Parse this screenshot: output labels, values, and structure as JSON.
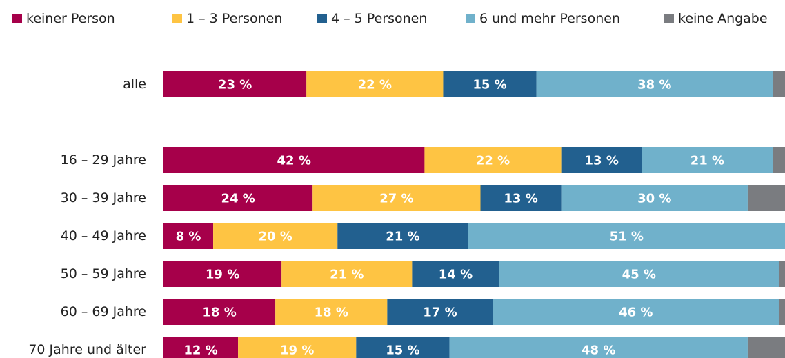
{
  "chart_data": {
    "type": "stacked-bar-horizontal",
    "categories": [
      "alle",
      "16 – 29 Jahre",
      "30 – 39 Jahre",
      "40 – 49 Jahre",
      "50 – 59 Jahre",
      "60 – 69 Jahre",
      "70 Jahre und älter"
    ],
    "xlim": [
      0,
      100
    ],
    "legend": "top",
    "series": [
      {
        "name": "keiner Person",
        "color": "#a6004a",
        "values": [
          23,
          42,
          24,
          8,
          19,
          18,
          12
        ],
        "value_labels": [
          "23 %",
          "42 %",
          "24 %",
          "8 %",
          "19 %",
          "18 %",
          "12 %"
        ]
      },
      {
        "name": "1 – 3 Personen",
        "color": "#fec443",
        "values": [
          22,
          22,
          27,
          20,
          21,
          18,
          19
        ],
        "value_labels": [
          "22 %",
          "22 %",
          "27 %",
          "20 %",
          "21 %",
          "18 %",
          "19 %"
        ]
      },
      {
        "name": "4 – 5 Personen",
        "color": "#22608f",
        "values": [
          15,
          13,
          13,
          21,
          14,
          17,
          15
        ],
        "value_labels": [
          "15 %",
          "13 %",
          "13 %",
          "21 %",
          "14 %",
          "17 %",
          "15 %"
        ]
      },
      {
        "name": "6 und mehr Personen",
        "color": "#70b1cb",
        "values": [
          38,
          21,
          30,
          51,
          45,
          46,
          48
        ],
        "value_labels": [
          "38 %",
          "21 %",
          "30 %",
          "51 %",
          "45 %",
          "46 %",
          "48 %"
        ]
      },
      {
        "name": "keine Angabe",
        "color": "#7a7c80",
        "values": [
          2,
          2,
          6,
          0,
          1,
          1,
          6
        ]
      }
    ]
  }
}
